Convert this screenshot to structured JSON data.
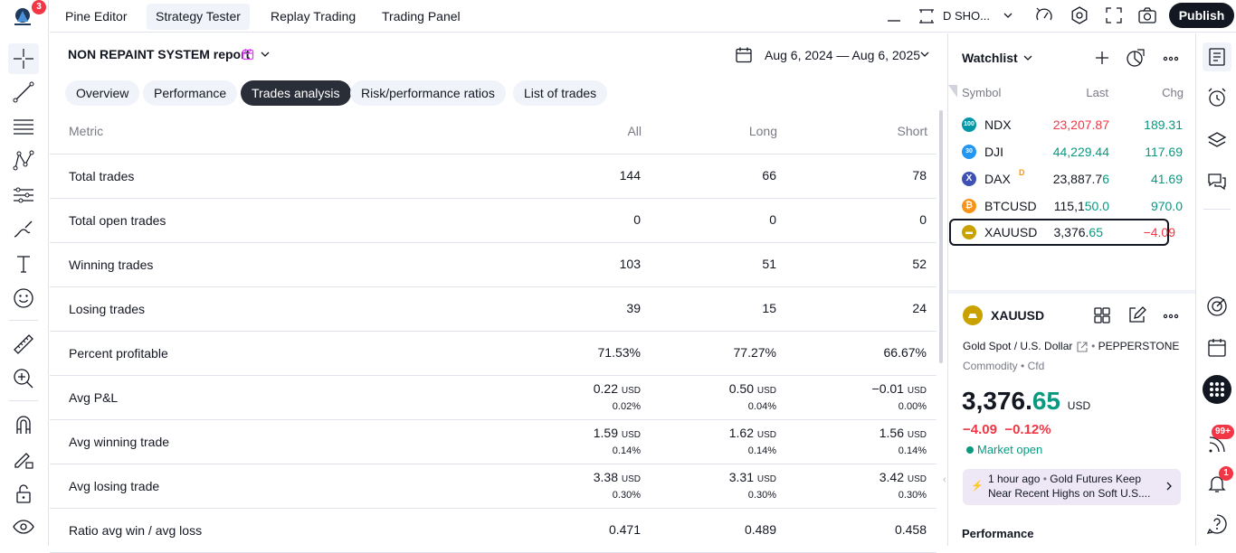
{
  "app": {
    "notification_count": "3"
  },
  "top_tabs": [
    "Pine Editor",
    "Strategy Tester",
    "Replay Trading",
    "Trading Panel"
  ],
  "top_right": {
    "symbol_text": "D SHO...",
    "publish_label": "Publish"
  },
  "report": {
    "title": "NON REPAINT SYSTEM report",
    "date_range": "Aug 6, 2024 — Aug 6, 2025",
    "tabs": [
      "Overview",
      "Performance",
      "Trades analysis",
      "Risk/performance ratios",
      "List of trades"
    ],
    "active_tab": "Trades analysis",
    "columns": [
      "Metric",
      "All",
      "Long",
      "Short"
    ],
    "rows": [
      {
        "metric": "Total trades",
        "all": "144",
        "long": "66",
        "short": "78"
      },
      {
        "metric": "Total open trades",
        "all": "0",
        "long": "0",
        "short": "0"
      },
      {
        "metric": "Winning trades",
        "all": "103",
        "long": "51",
        "short": "52"
      },
      {
        "metric": "Losing trades",
        "all": "39",
        "long": "15",
        "short": "24"
      },
      {
        "metric": "Percent profitable",
        "all": "71.53%",
        "long": "77.27%",
        "short": "66.67%"
      },
      {
        "metric": "Avg P&L",
        "all": "0.22",
        "all_unit": "USD",
        "all_sub": "0.02%",
        "long": "0.50",
        "long_unit": "USD",
        "long_sub": "0.04%",
        "short": "−0.01",
        "short_unit": "USD",
        "short_sub": "0.00%"
      },
      {
        "metric": "Avg winning trade",
        "all": "1.59",
        "all_unit": "USD",
        "all_sub": "0.14%",
        "long": "1.62",
        "long_unit": "USD",
        "long_sub": "0.14%",
        "short": "1.56",
        "short_unit": "USD",
        "short_sub": "0.14%"
      },
      {
        "metric": "Avg losing trade",
        "all": "3.38",
        "all_unit": "USD",
        "all_sub": "0.30%",
        "long": "3.31",
        "long_unit": "USD",
        "long_sub": "0.30%",
        "short": "3.42",
        "short_unit": "USD",
        "short_sub": "0.30%"
      },
      {
        "metric": "Ratio avg win / avg loss",
        "all": "0.471",
        "long": "0.489",
        "short": "0.458"
      }
    ]
  },
  "watchlist": {
    "title": "Watchlist",
    "columns": [
      "Symbol",
      "Last",
      "Chg"
    ],
    "items": [
      {
        "icon_text": "100",
        "icon_color": "#0097a7",
        "symbol": "NDX",
        "last": "23,207.87",
        "last_color": "#f23645",
        "chg": "189.31",
        "chg_color": "#089981"
      },
      {
        "icon_text": "30",
        "icon_color": "#2196f3",
        "symbol": "DJI",
        "last": "44,229.44",
        "last_color": "#089981",
        "chg": "117.69",
        "chg_color": "#089981"
      },
      {
        "icon_text": "X",
        "icon_color": "#3f51b5",
        "symbol": "DAX",
        "delay_marker": "D",
        "last_a": "23,887.7",
        "last_b": "6",
        "chg": "41.69",
        "chg_color": "#089981"
      },
      {
        "icon_text": "₿",
        "icon_color": "#f7931a",
        "symbol": "BTCUSD",
        "last_a": "115,1",
        "last_b": "50.0",
        "chg": "970.0",
        "chg_color": "#089981"
      },
      {
        "icon_text": "▬",
        "icon_color": "#c9a100",
        "symbol": "XAUUSD",
        "last_a": "3,376.",
        "last_b": "65",
        "chg": "−4.09",
        "chg_color": "#f23645"
      }
    ]
  },
  "details": {
    "symbol": "XAUUSD",
    "description": "Gold Spot / U.S. Dollar",
    "exchange": "PEPPERSTONE",
    "type": "Commodity",
    "subtype": "Cfd",
    "price_main": "3,376.",
    "price_frac": "65",
    "currency": "USD",
    "change": "−4.09",
    "change_pct": "−0.12%",
    "market_status": "Market open",
    "news_time": "1 hour ago",
    "news_text_1": "Gold Futures Keep",
    "news_text_2": "Near Recent Highs on Soft U.S....",
    "performance_label": "Performance"
  },
  "right_badges": {
    "ideas": "99+",
    "alerts": "1"
  }
}
